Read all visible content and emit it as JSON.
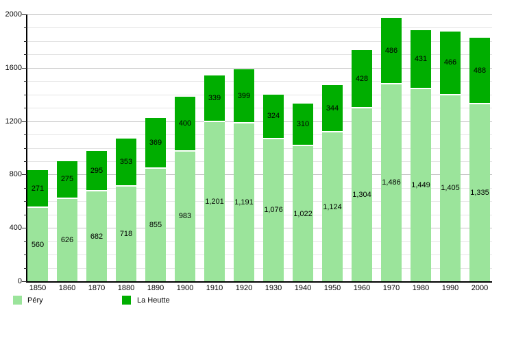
{
  "chart_data": {
    "type": "bar",
    "stacked": true,
    "title": "",
    "xlabel": "",
    "ylabel": "",
    "categories": [
      "1850",
      "1860",
      "1870",
      "1880",
      "1890",
      "1900",
      "1910",
      "1920",
      "1930",
      "1940",
      "1950",
      "1960",
      "1970",
      "1980",
      "1990",
      "2000"
    ],
    "series": [
      {
        "name": "Péry",
        "color": "#9BE49B",
        "values": [
          560,
          626,
          682,
          718,
          855,
          983,
          1201,
          1191,
          1076,
          1022,
          1124,
          1304,
          1486,
          1449,
          1405,
          1335
        ]
      },
      {
        "name": "La Heutte",
        "color": "#00AE00",
        "values": [
          271,
          275,
          295,
          353,
          369,
          400,
          339,
          399,
          324,
          310,
          344,
          428,
          486,
          431,
          466,
          488
        ]
      }
    ],
    "ylim": [
      0,
      2000
    ],
    "y_tick_values": [
      0,
      400,
      800,
      1200,
      1600,
      2000
    ],
    "y_tick_labels": [
      "0",
      "400",
      "800",
      "1200",
      "1600",
      "2000"
    ],
    "minor_grid_step": 100,
    "grid": true,
    "legend_position": "bottom-left",
    "background_color": "#ffffff",
    "separator_color": "#ffffff"
  }
}
